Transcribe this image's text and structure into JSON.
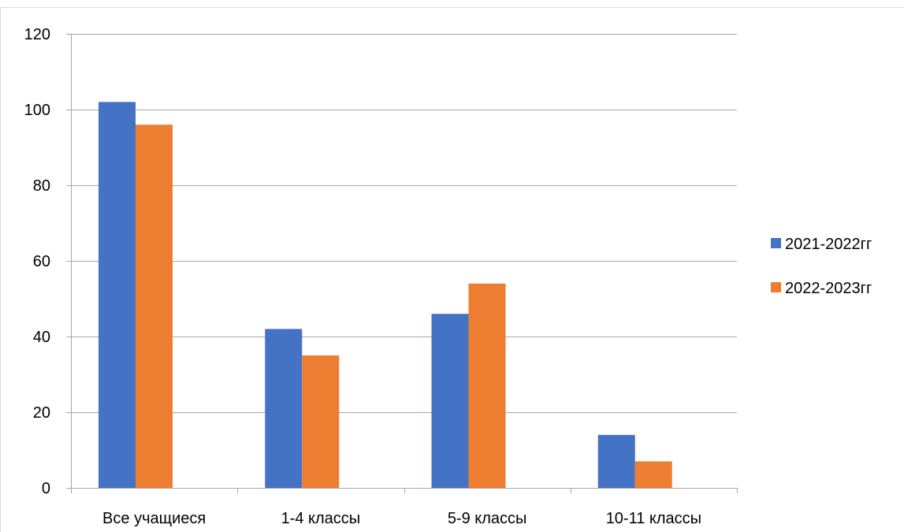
{
  "chart_data": {
    "type": "bar",
    "title": "",
    "xlabel": "",
    "ylabel": "",
    "categories": [
      "Все учащиеся",
      "1-4 классы",
      "5-9 классы",
      "10-11 классы"
    ],
    "series": [
      {
        "name": "2021-2022гг",
        "values": [
          102,
          42,
          46,
          14
        ],
        "color": "#4472C4"
      },
      {
        "name": "2022-2023гг",
        "values": [
          96,
          35,
          54,
          7
        ],
        "color": "#ED7D31"
      }
    ],
    "ylim": [
      0,
      120
    ],
    "yticks": [
      0,
      20,
      40,
      60,
      80,
      100,
      120
    ],
    "grid": true,
    "legend_position": "right"
  }
}
